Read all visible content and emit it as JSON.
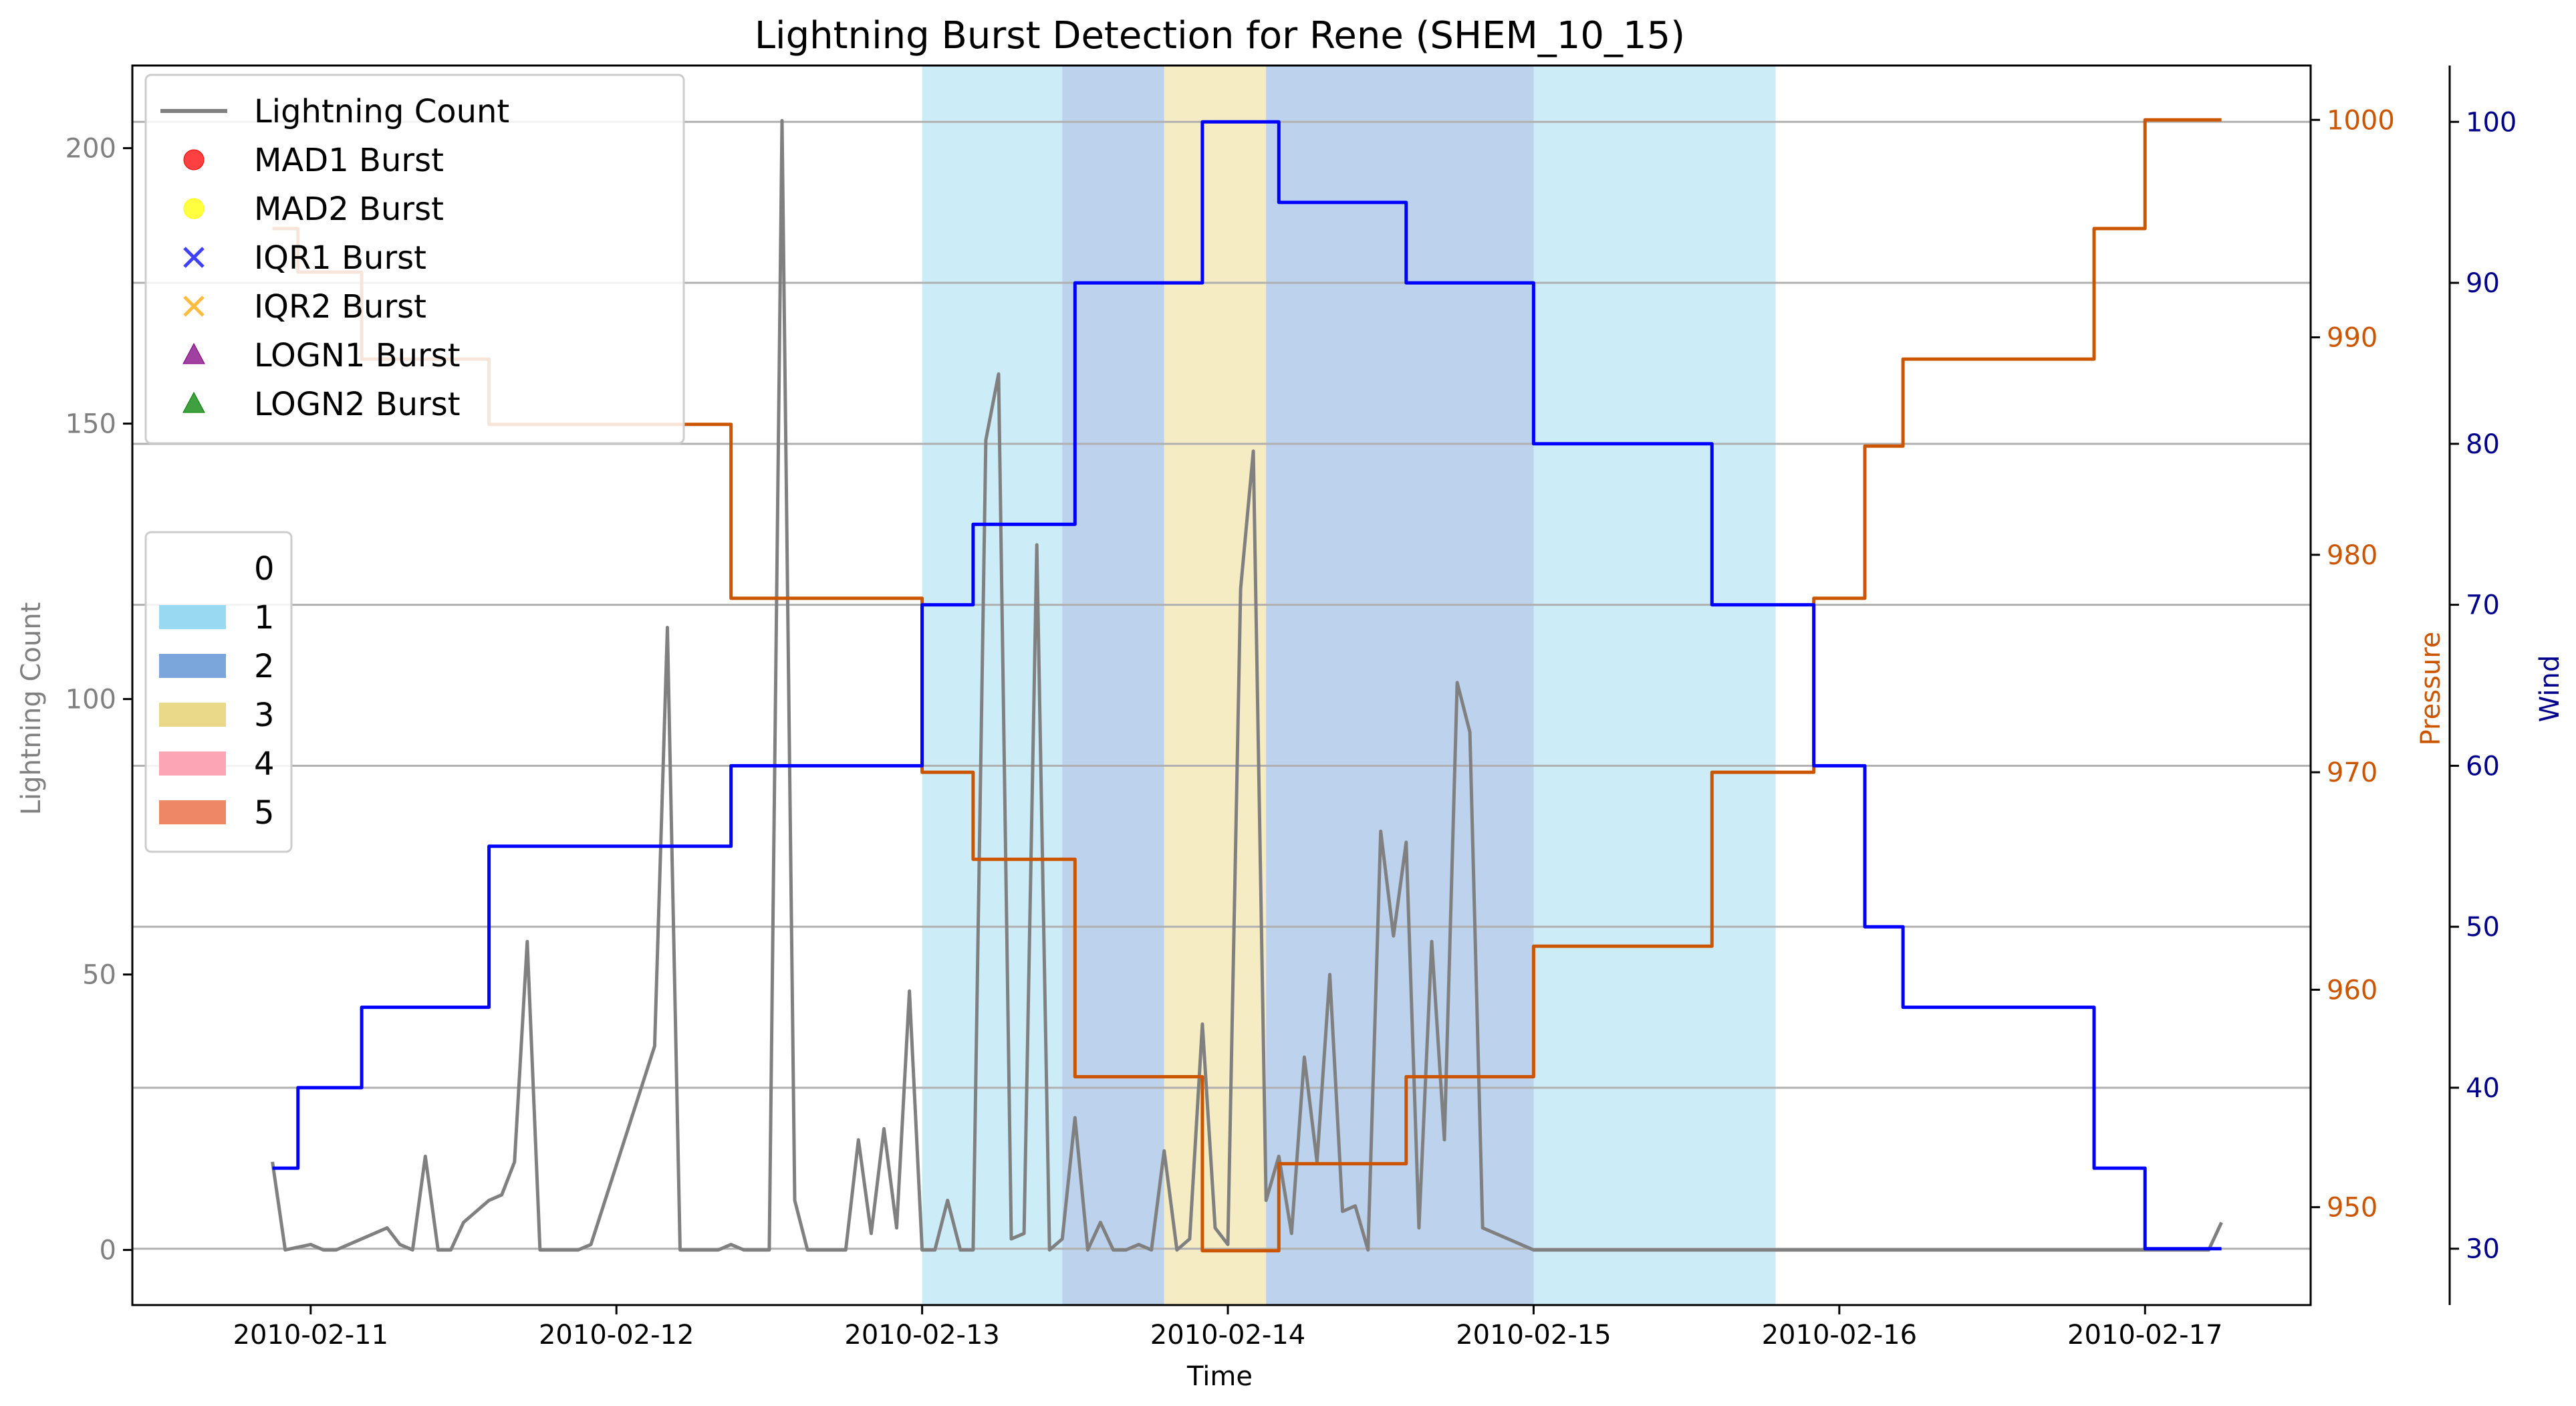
{
  "chart_data": {
    "type": "line",
    "title": "Lightning Burst Detection for Rene (SHEM_10_15)",
    "xlabel": "Time",
    "x_ticks": [
      "2010-02-11",
      "2010-02-12",
      "2010-02-13",
      "2010-02-14",
      "2010-02-15",
      "2010-02-16",
      "2010-02-17"
    ],
    "xlim": [
      "2010-02-10T10:00",
      "2010-02-17T13:00"
    ],
    "axes": {
      "left": {
        "label": "Lightning Count",
        "ylim": [
          -10,
          215
        ],
        "ticks": [
          0,
          50,
          100,
          150,
          200
        ],
        "color": "#808080"
      },
      "right1": {
        "label": "Pressure",
        "ylim": [
          945.5,
          1002.5
        ],
        "ticks": [
          950,
          960,
          970,
          980,
          990,
          1000
        ],
        "color": "#cc5500"
      },
      "right2": {
        "label": "Wind",
        "ylim": [
          26.5,
          103.5
        ],
        "ticks": [
          30,
          40,
          50,
          60,
          70,
          80,
          90,
          100
        ],
        "color": "#00008b"
      }
    },
    "grid": "horizontal lines at wind ticks",
    "series": [
      {
        "name": "Lightning Count",
        "axis": "left",
        "color": "#808080",
        "x": [
          "2010-02-10T21:00",
          "2010-02-10T22:00",
          "2010-02-11T00:00",
          "2010-02-11T01:00",
          "2010-02-11T02:00",
          "2010-02-11T06:00",
          "2010-02-11T07:00",
          "2010-02-11T08:00",
          "2010-02-11T09:00",
          "2010-02-11T10:00",
          "2010-02-11T11:00",
          "2010-02-11T12:00",
          "2010-02-11T14:00",
          "2010-02-11T15:00",
          "2010-02-11T16:00",
          "2010-02-11T17:00",
          "2010-02-11T18:00",
          "2010-02-11T19:00",
          "2010-02-11T20:00",
          "2010-02-11T21:00",
          "2010-02-11T22:00",
          "2010-02-12T03:00",
          "2010-02-12T04:00",
          "2010-02-12T05:00",
          "2010-02-12T06:00",
          "2010-02-12T07:00",
          "2010-02-12T08:00",
          "2010-02-12T09:00",
          "2010-02-12T10:00",
          "2010-02-12T11:00",
          "2010-02-12T12:00",
          "2010-02-12T13:00",
          "2010-02-12T14:00",
          "2010-02-12T15:00",
          "2010-02-12T16:00",
          "2010-02-12T17:00",
          "2010-02-12T18:00",
          "2010-02-12T19:00",
          "2010-02-12T20:00",
          "2010-02-12T21:00",
          "2010-02-12T22:00",
          "2010-02-12T23:00",
          "2010-02-13T00:00",
          "2010-02-13T01:00",
          "2010-02-13T02:00",
          "2010-02-13T03:00",
          "2010-02-13T04:00",
          "2010-02-13T05:00",
          "2010-02-13T06:00",
          "2010-02-13T07:00",
          "2010-02-13T08:00",
          "2010-02-13T09:00",
          "2010-02-13T10:00",
          "2010-02-13T11:00",
          "2010-02-13T12:00",
          "2010-02-13T13:00",
          "2010-02-13T14:00",
          "2010-02-13T15:00",
          "2010-02-13T16:00",
          "2010-02-13T17:00",
          "2010-02-13T18:00",
          "2010-02-13T19:00",
          "2010-02-13T20:00",
          "2010-02-13T21:00",
          "2010-02-13T22:00",
          "2010-02-13T23:00",
          "2010-02-14T00:00",
          "2010-02-14T01:00",
          "2010-02-14T02:00",
          "2010-02-14T03:00",
          "2010-02-14T04:00",
          "2010-02-14T05:00",
          "2010-02-14T06:00",
          "2010-02-14T07:00",
          "2010-02-14T08:00",
          "2010-02-14T09:00",
          "2010-02-14T10:00",
          "2010-02-14T11:00",
          "2010-02-14T12:00",
          "2010-02-14T13:00",
          "2010-02-14T14:00",
          "2010-02-14T15:00",
          "2010-02-14T16:00",
          "2010-02-14T17:00",
          "2010-02-14T18:00",
          "2010-02-14T19:00",
          "2010-02-14T20:00",
          "2010-02-15T00:00",
          "2010-02-16T00:00",
          "2010-02-17T00:00",
          "2010-02-17T05:00",
          "2010-02-17T06:00"
        ],
        "values": [
          16,
          0,
          1,
          0,
          0,
          4,
          1,
          0,
          17,
          0,
          0,
          5,
          9,
          10,
          16,
          56,
          0,
          0,
          0,
          0,
          1,
          37,
          113,
          0,
          0,
          0,
          0,
          1,
          0,
          0,
          0,
          205,
          9,
          0,
          0,
          0,
          0,
          20,
          3,
          22,
          4,
          47,
          0,
          0,
          9,
          0,
          0,
          147,
          159,
          2,
          3,
          128,
          0,
          2,
          24,
          0,
          5,
          0,
          0,
          1,
          0,
          18,
          0,
          2,
          41,
          4,
          1,
          120,
          145,
          9,
          17,
          3,
          35,
          16,
          50,
          7,
          8,
          0,
          76,
          57,
          74,
          4,
          56,
          20,
          103,
          94,
          4,
          0,
          0,
          0,
          0,
          5
        ]
      },
      {
        "name": "Pressure",
        "axis": "right1",
        "color": "#cc5500",
        "x": [
          "2010-02-10T21:00",
          "2010-02-10T23:00",
          "2010-02-11T04:00",
          "2010-02-11T07:00",
          "2010-02-11T14:00",
          "2010-02-12T09:00",
          "2010-02-13T00:00",
          "2010-02-13T04:00",
          "2010-02-13T12:00",
          "2010-02-13T22:00",
          "2010-02-14T04:00",
          "2010-02-14T14:00",
          "2010-02-15T00:00",
          "2010-02-15T14:00",
          "2010-02-15T22:00",
          "2010-02-16T02:00",
          "2010-02-16T05:00",
          "2010-02-16T20:00",
          "2010-02-17T00:00",
          "2010-02-17T06:00"
        ],
        "values": [
          995,
          993,
          989,
          989,
          986,
          978,
          970,
          966,
          956,
          948,
          952,
          956,
          962,
          970,
          978,
          985,
          989,
          995,
          1000,
          1000
        ]
      },
      {
        "name": "Wind",
        "axis": "right2",
        "color": "#0000ff",
        "x": [
          "2010-02-10T21:00",
          "2010-02-10T23:00",
          "2010-02-11T04:00",
          "2010-02-11T07:00",
          "2010-02-11T14:00",
          "2010-02-12T09:00",
          "2010-02-13T00:00",
          "2010-02-13T04:00",
          "2010-02-13T12:00",
          "2010-02-13T22:00",
          "2010-02-14T04:00",
          "2010-02-14T14:00",
          "2010-02-15T00:00",
          "2010-02-15T14:00",
          "2010-02-15T22:00",
          "2010-02-16T02:00",
          "2010-02-16T05:00",
          "2010-02-16T20:00",
          "2010-02-17T00:00",
          "2010-02-17T06:00"
        ],
        "values": [
          35,
          40,
          45,
          45,
          55,
          60,
          70,
          75,
          90,
          100,
          95,
          90,
          80,
          70,
          60,
          50,
          45,
          35,
          30,
          30
        ]
      }
    ],
    "category_bands": [
      {
        "start": "2010-02-13T00:00",
        "end": "2010-02-13T11:00",
        "category": "1"
      },
      {
        "start": "2010-02-13T11:00",
        "end": "2010-02-13T19:00",
        "category": "2"
      },
      {
        "start": "2010-02-13T19:00",
        "end": "2010-02-14T03:00",
        "category": "3"
      },
      {
        "start": "2010-02-14T03:00",
        "end": "2010-02-15T00:00",
        "category": "2"
      },
      {
        "start": "2010-02-15T00:00",
        "end": "2010-02-15T19:00",
        "category": "1"
      }
    ],
    "legends": {
      "series": {
        "location": "top-left",
        "entries": [
          {
            "label": "Lightning Count",
            "marker": "line",
            "color": "#808080"
          },
          {
            "label": "MAD1 Burst",
            "marker": "circle",
            "color": "#ff0000"
          },
          {
            "label": "MAD2 Burst",
            "marker": "circle",
            "color": "#ffff00"
          },
          {
            "label": "IQR1 Burst",
            "marker": "x",
            "color": "#0000ff"
          },
          {
            "label": "IQR2 Burst",
            "marker": "x",
            "color": "#ffa500"
          },
          {
            "label": "LOGN1 Burst",
            "marker": "triangle",
            "color": "#800080"
          },
          {
            "label": "LOGN2 Burst",
            "marker": "triangle",
            "color": "#008000"
          }
        ]
      },
      "category": {
        "location": "center-left",
        "entries": [
          {
            "label": "0",
            "color": "#ffffff"
          },
          {
            "label": "1",
            "color": "#99d9f2"
          },
          {
            "label": "2",
            "color": "#7aa6db"
          },
          {
            "label": "3",
            "color": "#ebd98a"
          },
          {
            "label": "4",
            "color": "#fca6b5"
          },
          {
            "label": "5",
            "color": "#ed8766"
          }
        ]
      }
    }
  }
}
